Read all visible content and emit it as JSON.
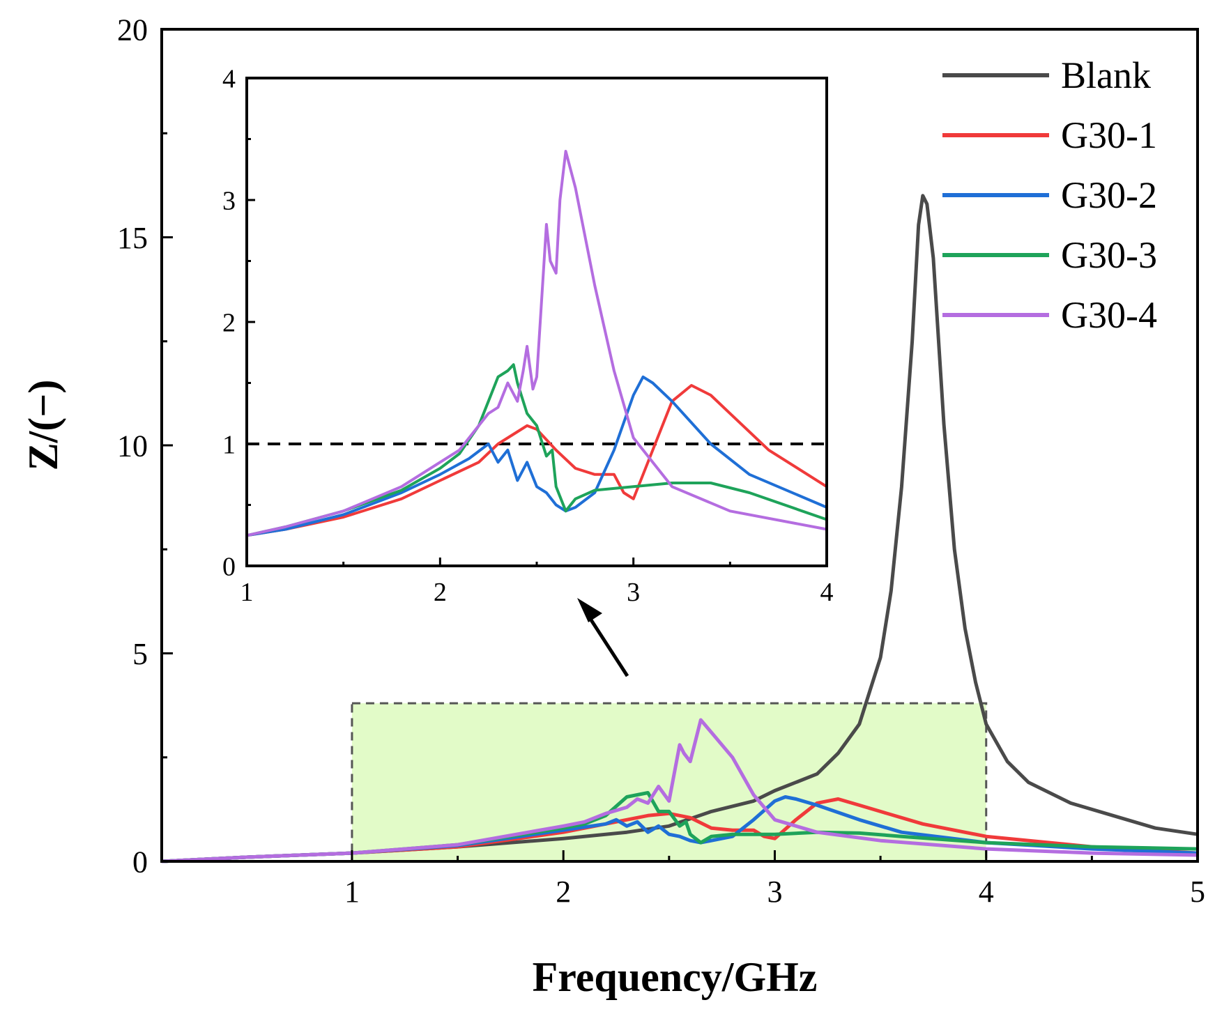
{
  "chart_data": [
    {
      "type": "line",
      "role": "main",
      "xlabel": "Frequency/GHz",
      "ylabel": "Z/(−)",
      "xlim": [
        0.1,
        5
      ],
      "ylim": [
        0,
        20
      ],
      "xticks": [
        1,
        2,
        3,
        4,
        5
      ],
      "yticks": [
        0,
        5,
        10,
        15,
        20
      ],
      "highlight_region": {
        "x": [
          1,
          4
        ],
        "y": [
          0,
          3.8
        ],
        "color": "#e2fbc8",
        "style": "dashed"
      },
      "legend": {
        "position": "top-right",
        "entries": [
          "Blank",
          "G30-1",
          "G30-2",
          "G30-3",
          "G30-4"
        ]
      },
      "series": [
        {
          "name": "Blank",
          "color": "#4a4a4a",
          "x": [
            0.1,
            0.5,
            1.0,
            1.5,
            2.0,
            2.3,
            2.5,
            2.7,
            2.9,
            3.0,
            3.1,
            3.2,
            3.3,
            3.4,
            3.45,
            3.5,
            3.55,
            3.6,
            3.65,
            3.68,
            3.7,
            3.72,
            3.75,
            3.8,
            3.85,
            3.9,
            3.95,
            4.0,
            4.1,
            4.2,
            4.4,
            4.6,
            4.8,
            5.0
          ],
          "y": [
            0.0,
            0.1,
            0.2,
            0.35,
            0.55,
            0.7,
            0.85,
            1.2,
            1.45,
            1.7,
            1.9,
            2.1,
            2.6,
            3.3,
            4.1,
            4.9,
            6.5,
            9.0,
            12.5,
            15.3,
            16.0,
            15.8,
            14.5,
            10.5,
            7.5,
            5.6,
            4.3,
            3.3,
            2.4,
            1.9,
            1.4,
            1.1,
            0.8,
            0.65
          ]
        },
        {
          "name": "G30-1",
          "color": "#f03a3a",
          "x": [
            0.1,
            0.5,
            1.0,
            1.5,
            2.0,
            2.2,
            2.4,
            2.5,
            2.6,
            2.7,
            2.8,
            2.9,
            2.95,
            3.0,
            3.1,
            3.2,
            3.3,
            3.4,
            3.5,
            3.7,
            4.0,
            4.5,
            5.0
          ],
          "y": [
            0.0,
            0.1,
            0.2,
            0.35,
            0.7,
            0.9,
            1.1,
            1.15,
            1.05,
            0.8,
            0.75,
            0.75,
            0.6,
            0.55,
            1.0,
            1.4,
            1.5,
            1.35,
            1.2,
            0.9,
            0.6,
            0.35,
            0.2
          ]
        },
        {
          "name": "G30-2",
          "color": "#1f6fd6",
          "x": [
            0.1,
            0.5,
            1.0,
            1.5,
            2.0,
            2.2,
            2.25,
            2.3,
            2.35,
            2.4,
            2.45,
            2.5,
            2.55,
            2.6,
            2.65,
            2.7,
            2.8,
            2.9,
            3.0,
            3.05,
            3.1,
            3.2,
            3.4,
            3.6,
            4.0,
            4.5,
            5.0
          ],
          "y": [
            0.0,
            0.1,
            0.2,
            0.38,
            0.75,
            0.9,
            1.0,
            0.85,
            0.95,
            0.7,
            0.85,
            0.65,
            0.6,
            0.5,
            0.45,
            0.5,
            0.6,
            1.0,
            1.45,
            1.55,
            1.5,
            1.35,
            1.0,
            0.7,
            0.45,
            0.3,
            0.2
          ]
        },
        {
          "name": "G30-3",
          "color": "#1ea35a",
          "x": [
            0.1,
            0.5,
            1.0,
            1.5,
            2.0,
            2.1,
            2.2,
            2.3,
            2.35,
            2.4,
            2.45,
            2.5,
            2.55,
            2.58,
            2.6,
            2.65,
            2.7,
            2.8,
            3.0,
            3.2,
            3.4,
            3.6,
            4.0,
            4.5,
            5.0
          ],
          "y": [
            0.0,
            0.1,
            0.2,
            0.4,
            0.8,
            0.9,
            1.1,
            1.55,
            1.6,
            1.65,
            1.2,
            1.2,
            0.85,
            0.95,
            0.65,
            0.45,
            0.6,
            0.65,
            0.65,
            0.7,
            0.68,
            0.6,
            0.45,
            0.35,
            0.3
          ]
        },
        {
          "name": "G30-4",
          "color": "#b46de0",
          "x": [
            0.1,
            0.5,
            1.0,
            1.5,
            2.0,
            2.1,
            2.2,
            2.3,
            2.35,
            2.4,
            2.45,
            2.5,
            2.55,
            2.57,
            2.6,
            2.65,
            2.7,
            2.8,
            2.9,
            3.0,
            3.2,
            3.5,
            4.0,
            4.5,
            5.0
          ],
          "y": [
            0.0,
            0.1,
            0.2,
            0.4,
            0.85,
            0.95,
            1.15,
            1.3,
            1.5,
            1.4,
            1.8,
            1.45,
            2.8,
            2.6,
            2.4,
            3.4,
            3.1,
            2.5,
            1.6,
            1.0,
            0.7,
            0.5,
            0.3,
            0.2,
            0.15
          ]
        }
      ]
    },
    {
      "type": "line",
      "role": "inset",
      "xlim": [
        1,
        4
      ],
      "ylim": [
        0,
        4
      ],
      "xticks": [
        1,
        2,
        3,
        4
      ],
      "yticks": [
        0,
        1,
        2,
        3,
        4
      ],
      "reference_line": {
        "y": 1,
        "style": "dashed",
        "color": "#000000"
      },
      "series": [
        {
          "name": "G30-1",
          "color": "#f03a3a",
          "x": [
            1.0,
            1.2,
            1.5,
            1.8,
            2.0,
            2.2,
            2.3,
            2.4,
            2.45,
            2.5,
            2.6,
            2.7,
            2.8,
            2.9,
            2.95,
            3.0,
            3.1,
            3.2,
            3.3,
            3.4,
            3.5,
            3.7,
            4.0
          ],
          "y": [
            0.25,
            0.3,
            0.4,
            0.55,
            0.7,
            0.85,
            1.0,
            1.1,
            1.15,
            1.12,
            0.95,
            0.8,
            0.75,
            0.75,
            0.6,
            0.55,
            0.95,
            1.35,
            1.48,
            1.4,
            1.25,
            0.95,
            0.65
          ]
        },
        {
          "name": "G30-2",
          "color": "#1f6fd6",
          "x": [
            1.0,
            1.2,
            1.5,
            1.8,
            2.0,
            2.15,
            2.25,
            2.3,
            2.35,
            2.4,
            2.45,
            2.5,
            2.55,
            2.6,
            2.65,
            2.7,
            2.8,
            2.9,
            3.0,
            3.05,
            3.1,
            3.2,
            3.4,
            3.6,
            4.0
          ],
          "y": [
            0.25,
            0.3,
            0.42,
            0.6,
            0.75,
            0.88,
            1.0,
            0.85,
            0.95,
            0.7,
            0.85,
            0.65,
            0.6,
            0.5,
            0.45,
            0.48,
            0.6,
            0.95,
            1.4,
            1.55,
            1.5,
            1.35,
            1.0,
            0.75,
            0.48
          ]
        },
        {
          "name": "G30-3",
          "color": "#1ea35a",
          "x": [
            1.0,
            1.2,
            1.5,
            1.8,
            2.0,
            2.1,
            2.2,
            2.25,
            2.3,
            2.35,
            2.38,
            2.4,
            2.45,
            2.5,
            2.55,
            2.58,
            2.6,
            2.65,
            2.7,
            2.8,
            3.0,
            3.2,
            3.4,
            3.6,
            4.0
          ],
          "y": [
            0.25,
            0.32,
            0.45,
            0.62,
            0.8,
            0.92,
            1.15,
            1.35,
            1.55,
            1.6,
            1.65,
            1.5,
            1.25,
            1.15,
            0.9,
            0.95,
            0.65,
            0.45,
            0.55,
            0.62,
            0.65,
            0.68,
            0.68,
            0.6,
            0.38
          ]
        },
        {
          "name": "G30-4",
          "color": "#b46de0",
          "x": [
            1.0,
            1.2,
            1.5,
            1.8,
            2.0,
            2.1,
            2.2,
            2.25,
            2.3,
            2.35,
            2.4,
            2.43,
            2.45,
            2.48,
            2.5,
            2.55,
            2.57,
            2.6,
            2.62,
            2.65,
            2.7,
            2.8,
            2.9,
            3.0,
            3.2,
            3.5,
            4.0
          ],
          "y": [
            0.25,
            0.32,
            0.45,
            0.65,
            0.85,
            0.95,
            1.15,
            1.25,
            1.3,
            1.5,
            1.35,
            1.6,
            1.8,
            1.45,
            1.55,
            2.8,
            2.5,
            2.4,
            3.0,
            3.4,
            3.1,
            2.3,
            1.6,
            1.05,
            0.65,
            0.45,
            0.3
          ]
        }
      ]
    }
  ]
}
